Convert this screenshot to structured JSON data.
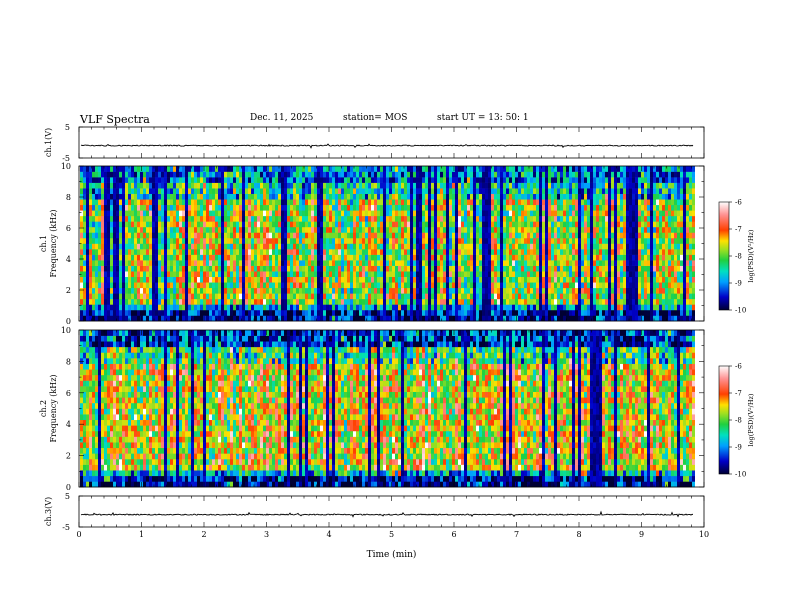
{
  "header": {
    "title": "VLF Spectra",
    "date": "Dec. 11, 2025",
    "station": "station= MOS",
    "start": "start  UT =   13: 50: 1"
  },
  "chart_data": [
    {
      "type": "line",
      "name": "ch1-waveform",
      "ylabel": "ch.1(V)",
      "ylim": [
        -5,
        5
      ],
      "yticks": [
        5,
        -5
      ],
      "baseline": -1,
      "xlim": [
        0,
        10
      ]
    },
    {
      "type": "heatmap",
      "name": "ch1-spectrogram",
      "ylabel_top": "ch.1",
      "ylabel": "Frequency (kHz)",
      "ylim": [
        0,
        10
      ],
      "yticks": [
        0,
        2,
        4,
        6,
        8,
        10
      ],
      "xlim": [
        0,
        9.83
      ],
      "colorbar": {
        "label": "log(PSD)(V²/Hz)",
        "range": [
          -10,
          -6
        ],
        "ticks": [
          -6,
          -7,
          -8,
          -9,
          -10
        ]
      }
    },
    {
      "type": "heatmap",
      "name": "ch2-spectrogram",
      "ylabel_top": "ch.2",
      "ylabel": "Frequency (kHz)",
      "ylim": [
        0,
        10
      ],
      "yticks": [
        0,
        2,
        4,
        6,
        8,
        10
      ],
      "xlim": [
        0,
        9.83
      ],
      "colorbar": {
        "label": "log(PSD)(V²/Hz)",
        "range": [
          -10,
          -6
        ],
        "ticks": [
          -6,
          -7,
          -8,
          -9,
          -10
        ]
      }
    },
    {
      "type": "line",
      "name": "ch3-waveform",
      "ylabel": "ch.3(V)",
      "ylim": [
        -5,
        5
      ],
      "yticks": [
        5,
        -5
      ],
      "baseline": -1,
      "xlim": [
        0,
        10
      ]
    }
  ],
  "xaxis": {
    "label": "Time (min)",
    "ticks": [
      0,
      1,
      2,
      3,
      4,
      5,
      6,
      7,
      8,
      9,
      10
    ]
  },
  "colors": {
    "scale": [
      "#000033",
      "#0000c8",
      "#00a0ff",
      "#00e0c0",
      "#20d040",
      "#a0e020",
      "#ffe000",
      "#ff4000",
      "#ff9090",
      "#ffffff"
    ]
  }
}
